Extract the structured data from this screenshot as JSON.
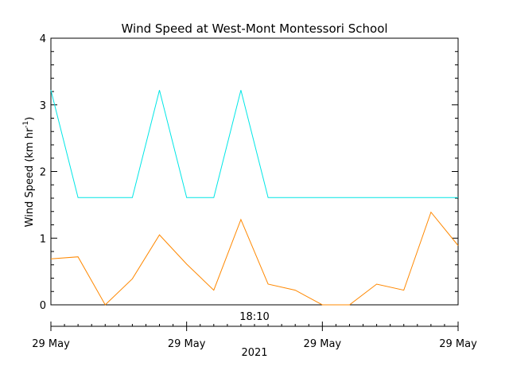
{
  "chart_data": {
    "type": "line",
    "title": "Wind Speed at West-Mont Montessori School",
    "ylabel": "Wind Speed (km hr",
    "ylabel_sup": "-1",
    "ylabel_close": ")",
    "ylim": [
      0,
      4
    ],
    "yticks": [
      "0",
      "1",
      "2",
      "3",
      "4"
    ],
    "x_time_label": "18:10",
    "x_date_ticks": [
      "29 May",
      "29 May",
      "29 May",
      "29 May"
    ],
    "x_year_label": "2021",
    "grid": false,
    "series": [
      {
        "color": "#00e6e6",
        "x": [
          0,
          1,
          2,
          3,
          4,
          5,
          6,
          7,
          8,
          9,
          10,
          11,
          12,
          13,
          14,
          15
        ],
        "values": [
          3.22,
          1.61,
          1.61,
          1.61,
          3.22,
          1.61,
          1.61,
          3.22,
          1.61,
          1.61,
          1.61,
          1.61,
          1.61,
          1.61,
          1.61,
          1.61
        ]
      },
      {
        "color": "#ff8800",
        "x": [
          0,
          1,
          2,
          3,
          4,
          5,
          6,
          7,
          8,
          9,
          10,
          11,
          12,
          13,
          14,
          15
        ],
        "values": [
          0.69,
          0.72,
          0.0,
          0.39,
          1.05,
          0.61,
          0.22,
          1.28,
          0.31,
          0.22,
          0.0,
          0.0,
          0.31,
          0.22,
          1.39,
          0.89
        ]
      }
    ]
  }
}
